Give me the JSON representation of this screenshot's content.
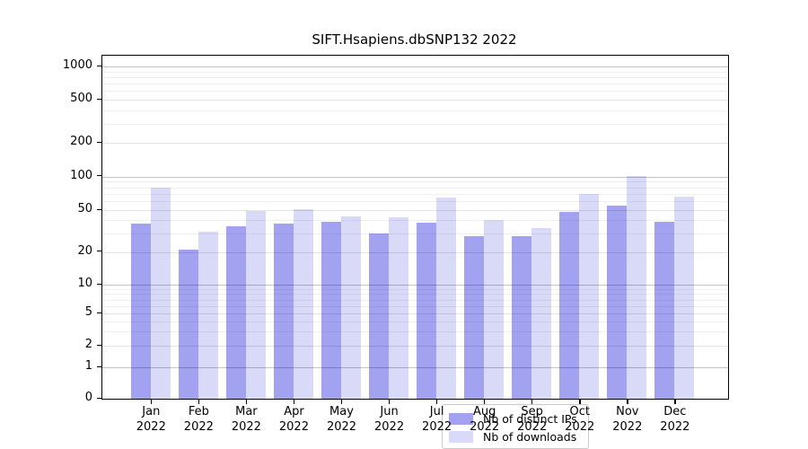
{
  "title": "SIFT.Hsapiens.dbSNP132 2022",
  "colors": {
    "distinct_ips_bar": "#a2a2f1",
    "downloads_bar": "#d9d9f8",
    "axis": "#000000"
  },
  "legend": {
    "items": [
      {
        "label": "Nb of distinct IPs",
        "color": "#a2a2f1"
      },
      {
        "label": "Nb of downloads",
        "color": "#d9d9f8"
      }
    ]
  },
  "y_axis": {
    "tick_labels": [
      "1000",
      "500",
      "200",
      "100",
      "50",
      "20",
      "10",
      "5",
      "2",
      "1",
      "0"
    ]
  },
  "x_axis": {
    "year": "2022",
    "months": [
      "Jan",
      "Feb",
      "Mar",
      "Apr",
      "May",
      "Jun",
      "Jul",
      "Aug",
      "Sep",
      "Oct",
      "Nov",
      "Dec"
    ]
  },
  "chart_data": {
    "type": "bar",
    "title": "SIFT.Hsapiens.dbSNP132 2022",
    "categories": [
      "Jan 2022",
      "Feb 2022",
      "Mar 2022",
      "Apr 2022",
      "May 2022",
      "Jun 2022",
      "Jul 2022",
      "Aug 2022",
      "Sep 2022",
      "Oct 2022",
      "Nov 2022",
      "Dec 2022"
    ],
    "series": [
      {
        "name": "Nb of distinct IPs",
        "color": "#a2a2f1",
        "values": [
          37,
          21,
          35,
          37,
          39,
          30,
          38,
          28,
          28,
          48,
          55,
          39
        ]
      },
      {
        "name": "Nb of downloads",
        "color": "#d9d9f8",
        "values": [
          80,
          31,
          49,
          51,
          44,
          43,
          65,
          40,
          34,
          70,
          101,
          66
        ]
      }
    ],
    "xlabel": "",
    "ylabel": "",
    "yscale": "symlog",
    "y_ticks": [
      0,
      1,
      2,
      5,
      10,
      20,
      50,
      100,
      200,
      500,
      1000
    ],
    "y_minor_ticks": [
      3,
      4,
      6,
      7,
      8,
      9,
      30,
      40,
      60,
      70,
      80,
      90,
      300,
      400,
      600,
      700,
      800,
      900
    ],
    "ylim": [
      0,
      1050
    ],
    "grid": true,
    "legend_position": "lower center"
  }
}
